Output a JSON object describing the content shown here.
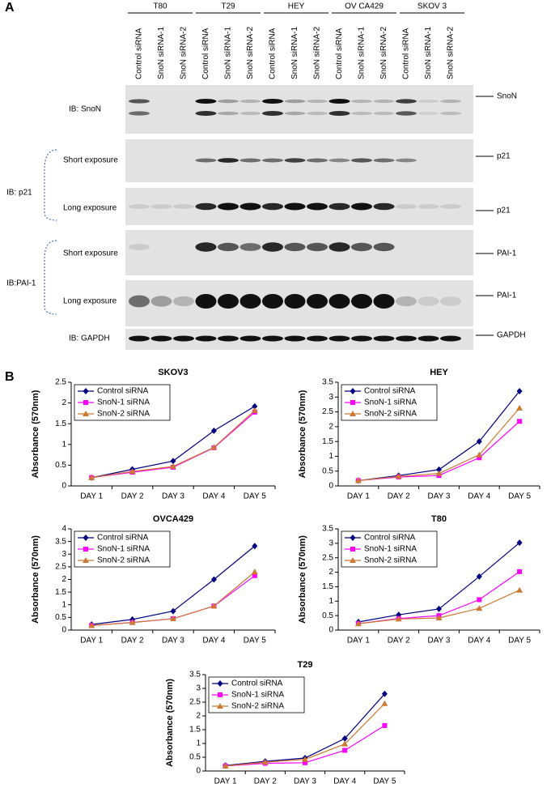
{
  "panel_labels": [
    "A",
    "B"
  ],
  "blot": {
    "cell_lines": [
      "T80",
      "T29",
      "HEY",
      "OV CA429",
      "SKOV 3"
    ],
    "lanes": [
      "Control siRNA",
      "SnoN siRNA-1",
      "SnoN siRNA-2"
    ],
    "left_labels": [
      "IB: SnoN",
      "IB: p21",
      "Short exposure",
      "Long exposure",
      "IB:PAI-1",
      "Short exposure",
      "Long exposure",
      "IB: GAPDH"
    ],
    "right_labels": [
      "SnoN",
      "p21",
      "p21",
      "PAI-1",
      "PAI-1",
      "GAPDH"
    ]
  },
  "chart_data": [
    {
      "type": "line",
      "title": "SKOV3",
      "y_label": "Absorbance (570nm)",
      "categories": [
        "DAY 1",
        "DAY 2",
        "DAY 3",
        "DAY 4",
        "DAY 5"
      ],
      "ylim": [
        0,
        2.5
      ],
      "yticks": [
        0,
        0.5,
        1,
        1.5,
        2,
        2.5
      ],
      "series": [
        {
          "name": "Control siRNA",
          "color": "#000080",
          "marker": "diamond",
          "values": [
            0.2,
            0.4,
            0.6,
            1.33,
            1.92
          ]
        },
        {
          "name": "SnoN-1 siRNA",
          "color": "#ff00ff",
          "marker": "square",
          "values": [
            0.2,
            0.33,
            0.45,
            0.92,
            1.78
          ]
        },
        {
          "name": "SnoN-2 siRNA",
          "color": "#cc7a33",
          "marker": "triangle",
          "values": [
            0.2,
            0.35,
            0.47,
            0.93,
            1.82
          ]
        }
      ]
    },
    {
      "type": "line",
      "title": "HEY",
      "y_label": "Absorbance (570nm)",
      "categories": [
        "DAY 1",
        "DAY 2",
        "DAY 3",
        "DAY 4",
        "DAY 5"
      ],
      "ylim": [
        0,
        3.5
      ],
      "yticks": [
        0,
        0.5,
        1,
        1.5,
        2,
        2.5,
        3,
        3.5
      ],
      "series": [
        {
          "name": "Control siRNA",
          "color": "#000080",
          "marker": "diamond",
          "values": [
            0.18,
            0.35,
            0.55,
            1.5,
            3.2
          ]
        },
        {
          "name": "SnoN-1 siRNA",
          "color": "#ff00ff",
          "marker": "square",
          "values": [
            0.18,
            0.3,
            0.35,
            0.95,
            2.18
          ]
        },
        {
          "name": "SnoN-2 siRNA",
          "color": "#cc7a33",
          "marker": "triangle",
          "values": [
            0.18,
            0.32,
            0.42,
            1.05,
            2.63
          ]
        }
      ]
    },
    {
      "type": "line",
      "title": "OVCA429",
      "y_label": "Absorbance (570nm)",
      "categories": [
        "DAY 1",
        "DAY 2",
        "DAY 3",
        "DAY 4",
        "DAY 5"
      ],
      "ylim": [
        0,
        4
      ],
      "yticks": [
        0,
        0.5,
        1,
        1.5,
        2,
        2.5,
        3,
        3.5,
        4
      ],
      "series": [
        {
          "name": "Control siRNA",
          "color": "#000080",
          "marker": "diamond",
          "values": [
            0.22,
            0.42,
            0.75,
            2.0,
            3.32
          ]
        },
        {
          "name": "SnoN-1 siRNA",
          "color": "#ff00ff",
          "marker": "square",
          "values": [
            0.18,
            0.3,
            0.45,
            0.95,
            2.15
          ]
        },
        {
          "name": "SnoN-2 siRNA",
          "color": "#cc7a33",
          "marker": "triangle",
          "values": [
            0.18,
            0.3,
            0.45,
            0.95,
            2.3
          ]
        }
      ]
    },
    {
      "type": "line",
      "title": "T80",
      "y_label": "Absorbance (570nm)",
      "categories": [
        "DAY 1",
        "DAY 2",
        "DAY 3",
        "DAY 4",
        "DAY 5"
      ],
      "ylim": [
        0,
        3.5
      ],
      "yticks": [
        0,
        0.5,
        1,
        1.5,
        2,
        2.5,
        3,
        3.5
      ],
      "series": [
        {
          "name": "Control siRNA",
          "color": "#000080",
          "marker": "diamond",
          "values": [
            0.28,
            0.53,
            0.73,
            1.85,
            3.02
          ]
        },
        {
          "name": "SnoN-1 siRNA",
          "color": "#ff00ff",
          "marker": "square",
          "values": [
            0.22,
            0.4,
            0.5,
            1.05,
            2.02
          ]
        },
        {
          "name": "SnoN-2 siRNA",
          "color": "#cc7a33",
          "marker": "triangle",
          "values": [
            0.22,
            0.38,
            0.42,
            0.75,
            1.38
          ]
        }
      ]
    },
    {
      "type": "line",
      "title": "T29",
      "y_label": "Absorbance (570nm)",
      "categories": [
        "DAY 1",
        "DAY 2",
        "DAY 3",
        "DAY 4",
        "DAY 5"
      ],
      "ylim": [
        0,
        3.5
      ],
      "yticks": [
        0,
        0.5,
        1,
        1.5,
        2,
        2.5,
        3,
        3.5
      ],
      "series": [
        {
          "name": "Control siRNA",
          "color": "#000080",
          "marker": "diamond",
          "values": [
            0.2,
            0.35,
            0.47,
            1.18,
            2.8
          ]
        },
        {
          "name": "SnoN-1 siRNA",
          "color": "#ff00ff",
          "marker": "square",
          "values": [
            0.18,
            0.28,
            0.3,
            0.75,
            1.65
          ]
        },
        {
          "name": "SnoN-2 siRNA",
          "color": "#cc7a33",
          "marker": "triangle",
          "values": [
            0.18,
            0.32,
            0.42,
            0.98,
            2.45
          ]
        }
      ]
    }
  ]
}
